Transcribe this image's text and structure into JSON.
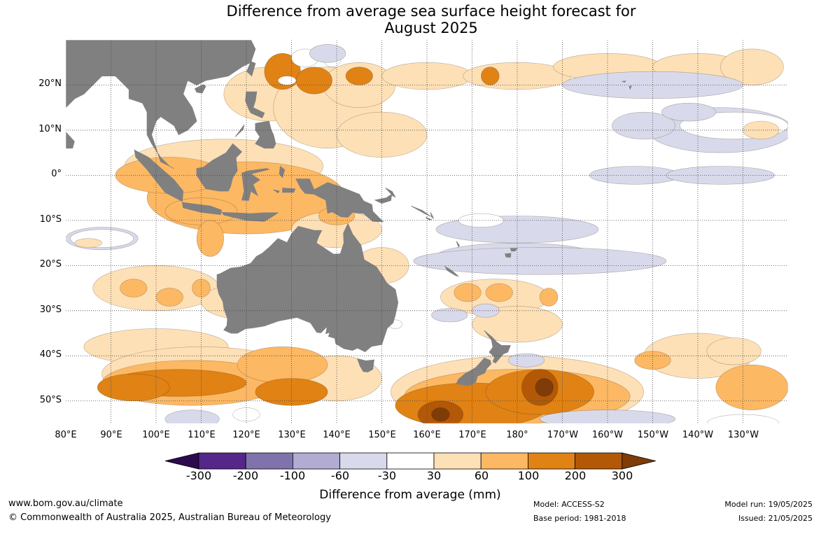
{
  "title": {
    "line1": "Difference from average sea surface height forecast for",
    "line2": "August 2025"
  },
  "map": {
    "region": "Australia and western/central Pacific Ocean",
    "projection": "equirectangular",
    "lon_range": [
      80,
      240
    ],
    "lat_range": [
      -55,
      30
    ],
    "land_color": "#808080",
    "ocean_color": "#ffffff",
    "gridlines": true,
    "lat_ticks": [
      "20°N",
      "10°N",
      "0°",
      "10°S",
      "20°S",
      "30°S",
      "40°S",
      "50°S"
    ],
    "lon_ticks": [
      "80°E",
      "90°E",
      "100°E",
      "110°E",
      "120°E",
      "130°E",
      "140°E",
      "150°E",
      "160°E",
      "170°E",
      "180°",
      "170°W",
      "160°W",
      "150°W",
      "140°W",
      "130°W"
    ]
  },
  "colorbar": {
    "label": "Difference from average (mm)",
    "tick_labels": [
      "-300",
      "-200",
      "-100",
      "-60",
      "-30",
      "30",
      "60",
      "100",
      "200",
      "300"
    ],
    "bins": [
      {
        "range": "< -300",
        "color": "#2d0a4e"
      },
      {
        "range": "-300 to -200",
        "color": "#542788"
      },
      {
        "range": "-200 to -100",
        "color": "#8073ac"
      },
      {
        "range": "-100 to -60",
        "color": "#b2abd2"
      },
      {
        "range": "-60 to -30",
        "color": "#d8daeb"
      },
      {
        "range": "-30 to 30",
        "color": "#ffffff"
      },
      {
        "range": "30 to 60",
        "color": "#fee0b6"
      },
      {
        "range": "60 to 100",
        "color": "#fdb863"
      },
      {
        "range": "100 to 200",
        "color": "#e08214"
      },
      {
        "range": "200 to 300",
        "color": "#b35806"
      },
      {
        "range": "> 300",
        "color": "#7f3b08"
      }
    ]
  },
  "footer": {
    "website": "www.bom.gov.au/climate",
    "copyright": "© Commonwealth of Australia 2025, Australian Bureau of Meteorology",
    "model": "Model: ACCESS-S2",
    "base_period": "Base period: 1981-2018",
    "model_run": "Model run: 19/05/2025",
    "issued": "Issued: 21/05/2025"
  }
}
